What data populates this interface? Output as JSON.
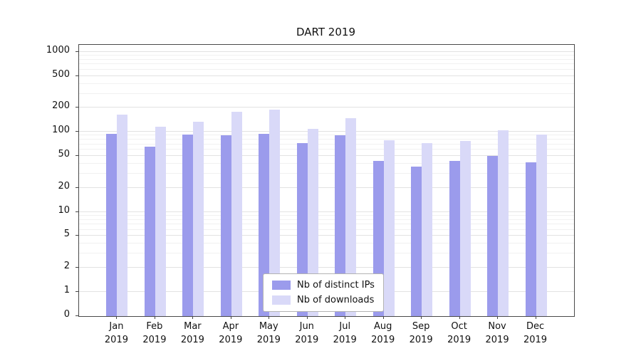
{
  "chart_data": {
    "type": "bar",
    "title": "DART 2019",
    "categories": [
      "Jan 2019",
      "Feb 2019",
      "Mar 2019",
      "Apr 2019",
      "May 2019",
      "Jun 2019",
      "Jul 2019",
      "Aug 2019",
      "Sep 2019",
      "Oct 2019",
      "Nov 2019",
      "Dec 2019"
    ],
    "series": [
      {
        "name": "Nb of distinct IPs",
        "color": "#9b9bec",
        "values": [
          95,
          65,
          92,
          90,
          95,
          73,
          90,
          43,
          37,
          43,
          50,
          42
        ]
      },
      {
        "name": "Nb of downloads",
        "color": "#d9d9f8",
        "values": [
          165,
          115,
          135,
          180,
          190,
          110,
          150,
          78,
          72,
          77,
          105,
          93
        ]
      }
    ],
    "y_scale": "symlog",
    "y_ticks": [
      0,
      1,
      2,
      5,
      10,
      20,
      50,
      100,
      200,
      500,
      1000
    ],
    "ylim": [
      0,
      1200
    ],
    "xlabel": "",
    "ylabel": "",
    "grid": true,
    "legend_position": "lower center"
  }
}
